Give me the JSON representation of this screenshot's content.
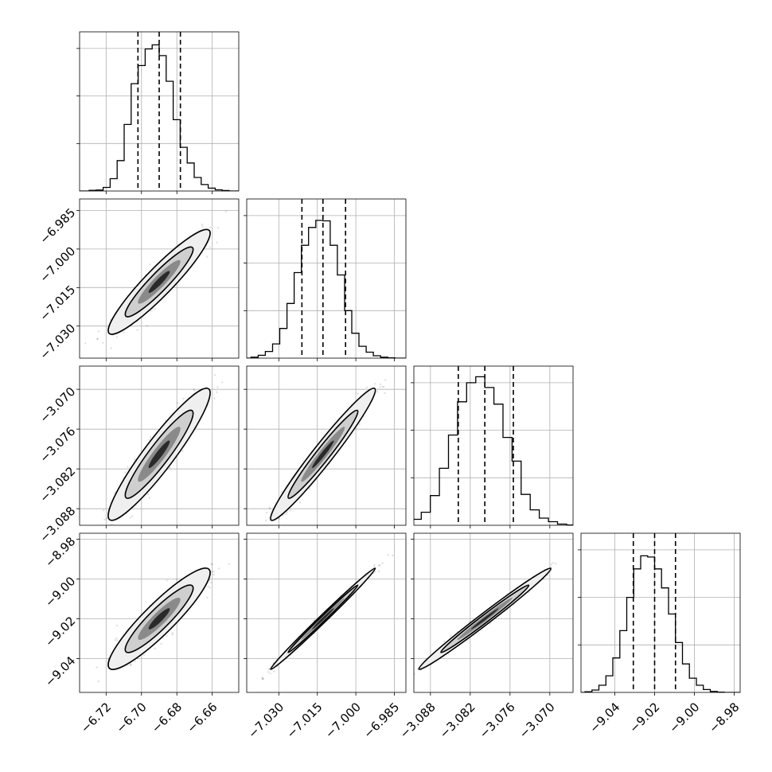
{
  "chart_data": {
    "type": "corner",
    "grid": true,
    "parameters": [
      {
        "range": [
          -6.735,
          -6.645
        ],
        "ticks": [
          -6.72,
          -6.7,
          -6.68,
          -6.66
        ],
        "tick_labels": [
          "−6.72",
          "−6.70",
          "−6.68",
          "−6.66"
        ],
        "quantiles": [
          -6.702,
          -6.69,
          -6.678
        ],
        "histogram": [
          0.3,
          0.4,
          1.5,
          5.2,
          12.8,
          28.0,
          45.2,
          52.8,
          59.8,
          61.5,
          57.0,
          46.2,
          30.0,
          18.4,
          11.8,
          5.7,
          2.7,
          1.2,
          0.5,
          0.2
        ]
      },
      {
        "range": [
          -7.0425,
          -6.9805
        ],
        "ticks": [
          -7.03,
          -7.015,
          -7.0,
          -6.985
        ],
        "tick_labels": [
          "−7.030",
          "−7.015",
          "−7.000",
          "−6.985"
        ],
        "quantiles": [
          -7.021,
          -7.0128,
          -7.004
        ],
        "histogram": [
          0.4,
          1.2,
          2.8,
          6.0,
          12.5,
          23.0,
          36.0,
          47.5,
          55.0,
          58.0,
          57.8,
          47.5,
          35.0,
          20.0,
          10.5,
          5.0,
          2.5,
          1.0,
          0.4,
          0.1
        ]
      },
      {
        "range": [
          -3.0905,
          -3.0665
        ],
        "ticks": [
          -3.088,
          -3.082,
          -3.076,
          -3.07
        ],
        "tick_labels": [
          "−3.088",
          "−3.082",
          "−3.076",
          "−3.070"
        ],
        "quantiles": [
          -3.0838,
          -3.0798,
          -3.0755
        ],
        "histogram": [
          0.3,
          1.0,
          2.5,
          5.5,
          12.5,
          24.0,
          38.0,
          52.0,
          60.0,
          62.5,
          58.0,
          51.0,
          37.0,
          27.0,
          13.0,
          6.5,
          3.0,
          1.5,
          0.5,
          0.1
        ]
      },
      {
        "range": [
          -9.057,
          -8.977
        ],
        "ticks": [
          -9.04,
          -9.02,
          -9.0,
          -8.98
        ],
        "tick_labels": [
          "−9.04",
          "−9.02",
          "−9.00",
          "−8.98"
        ],
        "quantiles": [
          -9.0307,
          -9.02,
          -9.0095
        ],
        "histogram": [
          0.3,
          1.0,
          3.0,
          7.0,
          14.5,
          26.0,
          40.0,
          52.0,
          57.5,
          57.0,
          52.0,
          44.0,
          33.0,
          21.0,
          12.0,
          6.0,
          3.0,
          1.2,
          0.4,
          0.1
        ]
      }
    ],
    "histogram_ylim": [
      0,
      67
    ],
    "histogram_yticks": [
      20,
      40,
      60
    ],
    "correlations": {
      "1-0": 0.93,
      "2-0": 0.93,
      "3-0": 0.91,
      "2-1": 0.97,
      "3-1": 0.995,
      "3-2": 0.99
    }
  }
}
